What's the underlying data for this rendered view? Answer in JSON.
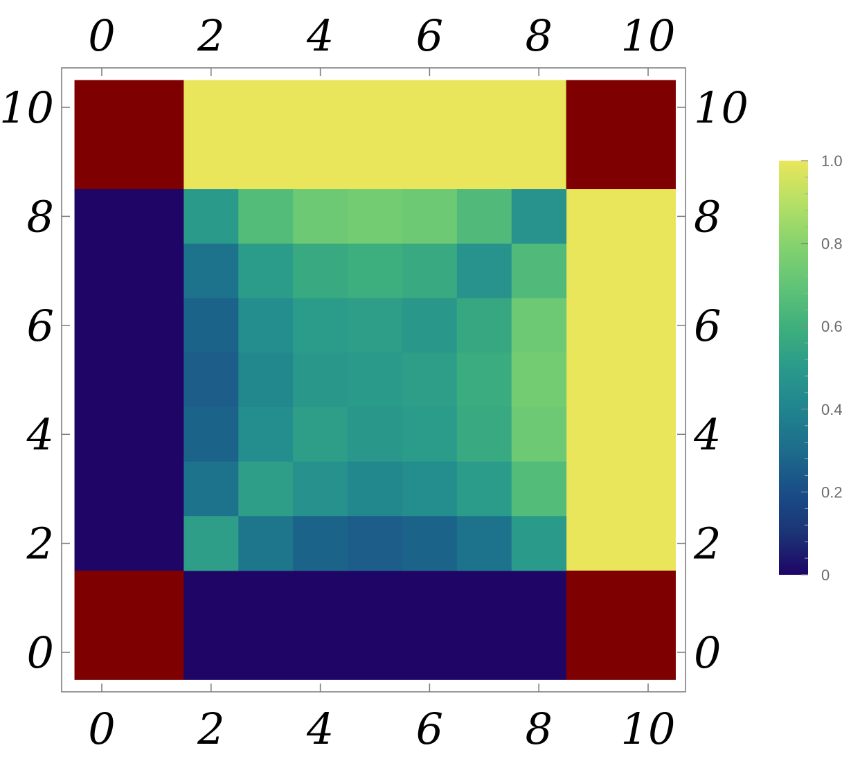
{
  "chart_data": {
    "type": "heatmap",
    "title": "",
    "xlabel": "",
    "ylabel": "",
    "xlim": [
      -0.5,
      10.5
    ],
    "ylim": [
      -0.5,
      10.5
    ],
    "x_ticks": [
      "0",
      "2",
      "4",
      "6",
      "8",
      "10"
    ],
    "y_ticks": [
      "0",
      "2",
      "4",
      "6",
      "8",
      "10"
    ],
    "colorscale": "viridis",
    "color_range": [
      0,
      1
    ],
    "colorbar_ticks": [
      "0",
      "0.2",
      "0.4",
      "0.6",
      "0.8",
      "1.0"
    ],
    "out_of_range_color": "#7f0000",
    "grid": false,
    "colorbar_position": "right",
    "cells": [
      {
        "x0": -0.5,
        "x1": 1.5,
        "y0": 8.5,
        "y1": 10.5,
        "value": null
      },
      {
        "x0": 1.5,
        "x1": 8.5,
        "y0": 8.5,
        "y1": 10.5,
        "value": 1.0
      },
      {
        "x0": 8.5,
        "x1": 10.5,
        "y0": 8.5,
        "y1": 10.5,
        "value": null
      },
      {
        "x0": -0.5,
        "x1": 1.5,
        "y0": 1.5,
        "y1": 8.5,
        "value": 0.0
      },
      {
        "x0": 8.5,
        "x1": 10.5,
        "y0": 1.5,
        "y1": 8.5,
        "value": 1.0
      },
      {
        "x0": -0.5,
        "x1": 1.5,
        "y0": -0.5,
        "y1": 1.5,
        "value": null
      },
      {
        "x0": 1.5,
        "x1": 8.5,
        "y0": -0.5,
        "y1": 1.5,
        "value": 0.0
      },
      {
        "x0": 8.5,
        "x1": 10.5,
        "y0": -0.5,
        "y1": 1.5,
        "value": null
      }
    ],
    "interior_x": [
      2,
      3,
      4,
      5,
      6,
      7,
      8
    ],
    "interior_y": [
      8,
      7,
      6,
      5,
      4,
      3,
      2
    ],
    "interior_values": [
      [
        0.5,
        0.66,
        0.73,
        0.75,
        0.73,
        0.65,
        0.47
      ],
      [
        0.33,
        0.51,
        0.57,
        0.59,
        0.57,
        0.47,
        0.65
      ],
      [
        0.27,
        0.44,
        0.51,
        0.52,
        0.49,
        0.56,
        0.73
      ],
      [
        0.25,
        0.42,
        0.49,
        0.5,
        0.52,
        0.58,
        0.75
      ],
      [
        0.27,
        0.44,
        0.52,
        0.49,
        0.51,
        0.57,
        0.73
      ],
      [
        0.33,
        0.52,
        0.46,
        0.42,
        0.44,
        0.51,
        0.66
      ],
      [
        0.52,
        0.34,
        0.27,
        0.25,
        0.27,
        0.33,
        0.5
      ]
    ]
  }
}
